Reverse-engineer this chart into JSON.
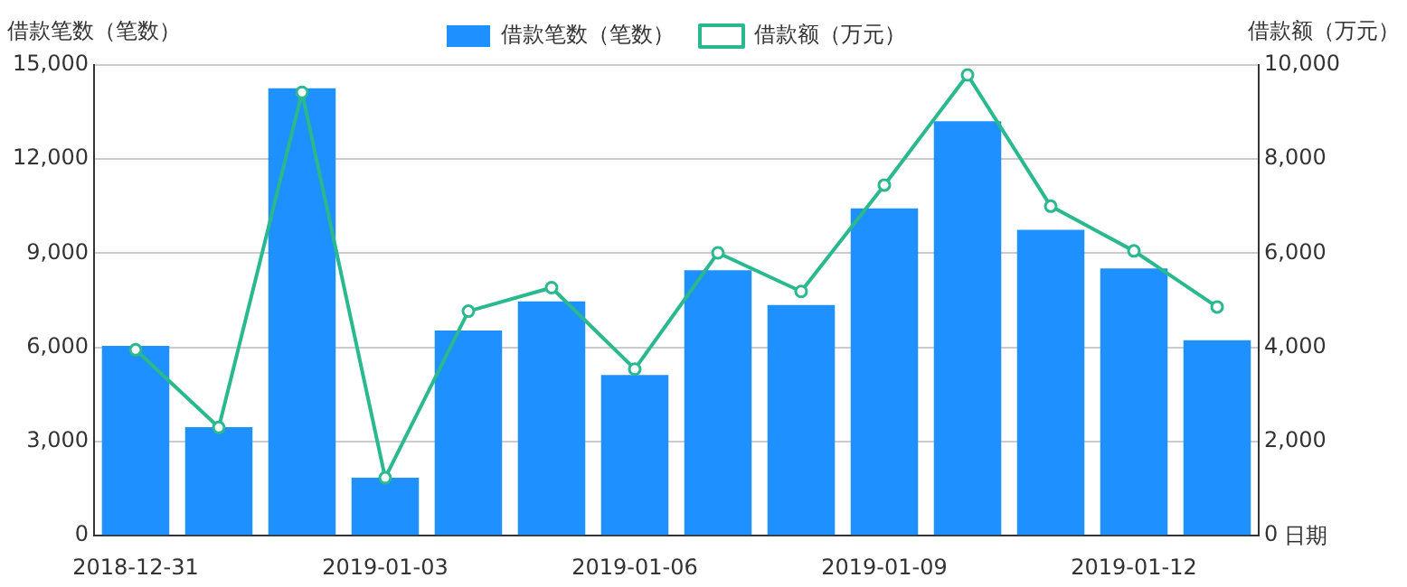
{
  "chart_data": {
    "type": "bar",
    "xlabel": "日期",
    "ylabel": "借款笔数（笔数）",
    "y2label": "借款额（万元）",
    "categories": [
      "2018-12-31",
      null,
      null,
      "2019-01-03",
      null,
      null,
      "2019-01-06",
      null,
      null,
      "2019-01-09",
      null,
      null,
      "2019-01-12",
      null
    ],
    "series": [
      {
        "name": "借款笔数（笔数）",
        "color": "#1e90ff",
        "values": [
          6050,
          3460,
          14260,
          1850,
          6540,
          7470,
          5120,
          8460,
          7350,
          10430,
          13210,
          9750,
          8520,
          6230
        ]
      },
      {
        "name": "借款额（万元）",
        "type": "line",
        "axis": "y2",
        "color": "#2ab98f",
        "marker": "circle",
        "values": [
          3950,
          2300,
          9420,
          1230,
          4770,
          5270,
          3540,
          6010,
          5190,
          7450,
          9790,
          7000,
          6050,
          4860
        ]
      }
    ],
    "ylim": [
      0,
      15000
    ],
    "yticks": [
      0,
      {
        "value": 3000,
        "label": "3,000"
      },
      {
        "value": 6000,
        "label": "6,000"
      },
      {
        "value": 9000,
        "label": "9,000"
      },
      {
        "value": 12000,
        "label": "12,000"
      },
      {
        "value": 15000,
        "label": "15,000"
      }
    ],
    "y2lim": [
      0,
      10000
    ],
    "y2ticks": [
      0,
      {
        "value": 2000,
        "label": "2,000"
      },
      {
        "value": 4000,
        "label": "4,000"
      },
      {
        "value": 6000,
        "label": "6,000"
      },
      {
        "value": 8000,
        "label": "8,000"
      },
      {
        "value": 10000,
        "label": "10,000"
      }
    ],
    "grid": "y",
    "legend": "top"
  }
}
